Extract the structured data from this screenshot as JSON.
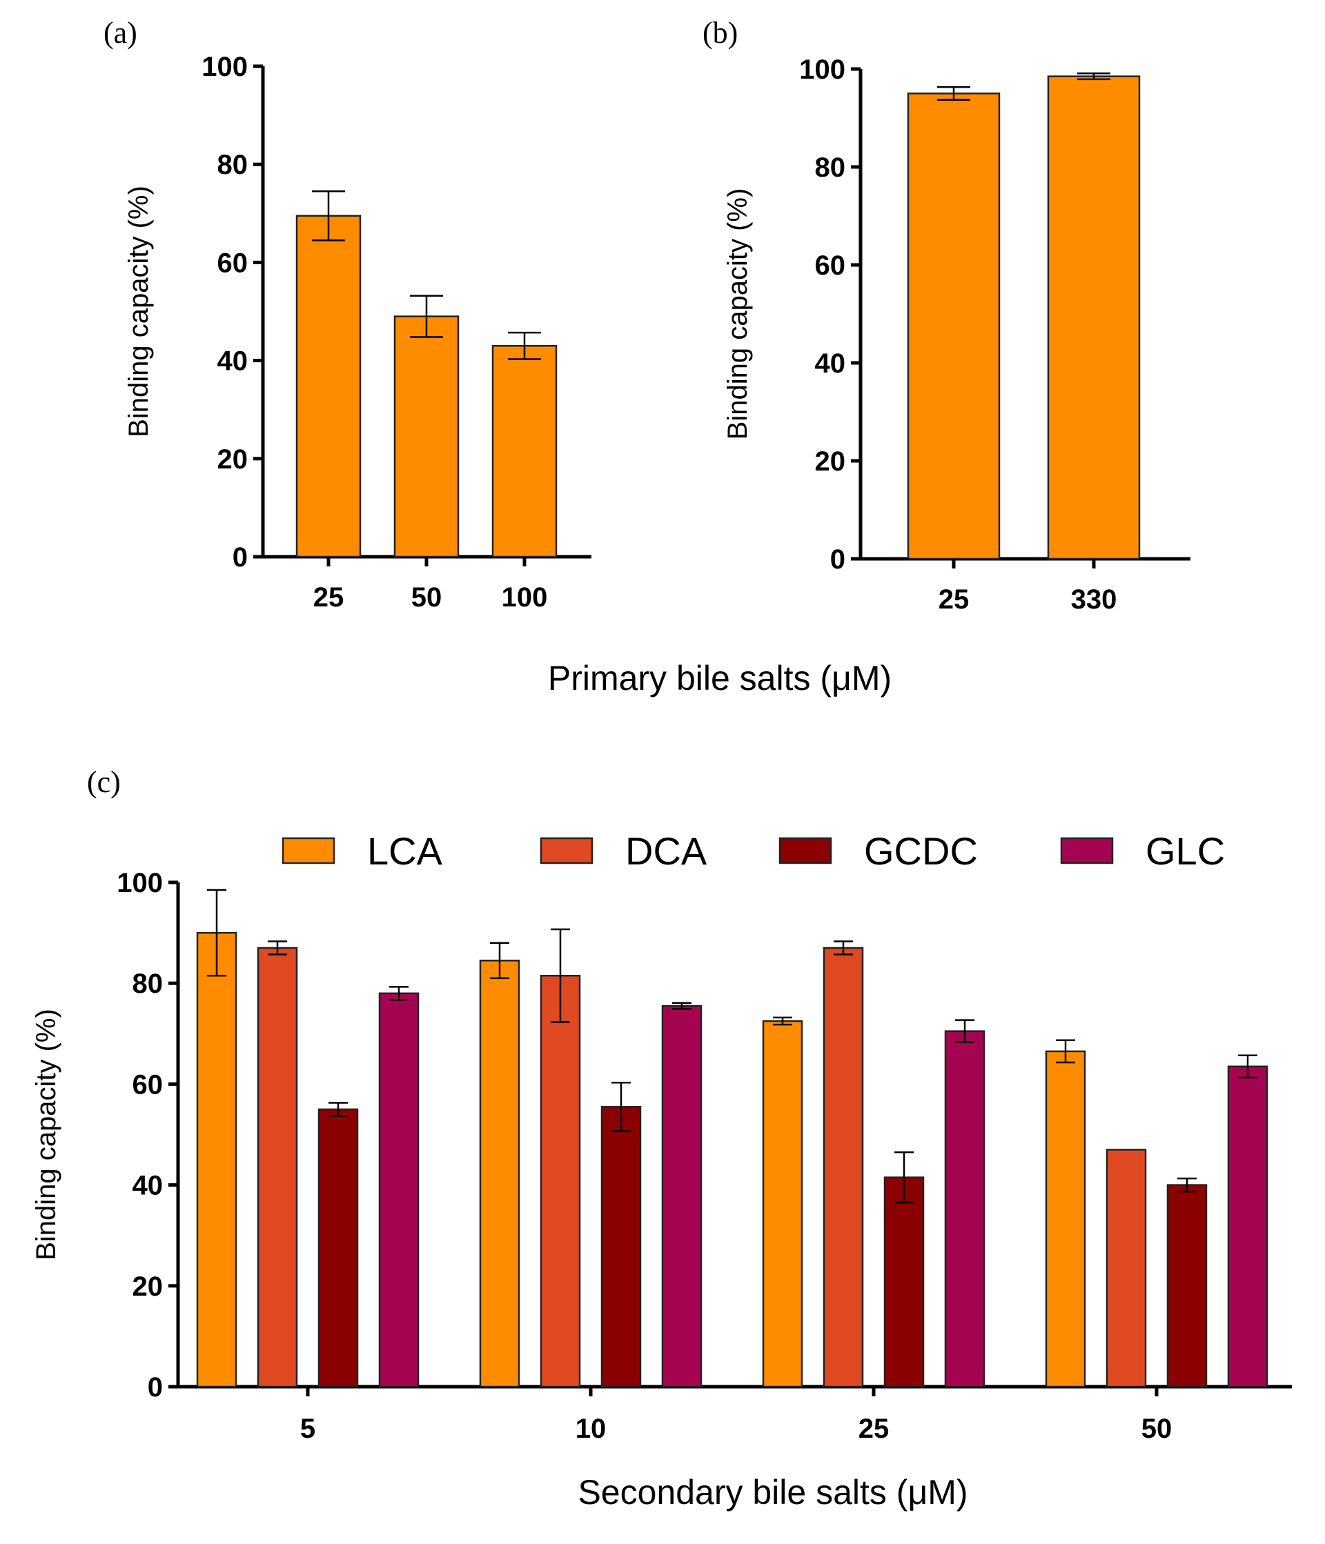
{
  "chart_data": [
    {
      "panel_label": "(a)",
      "type": "bar",
      "categories": [
        "25",
        "50",
        "100"
      ],
      "values": [
        69.5,
        49,
        43
      ],
      "errors": [
        5,
        4.2,
        2.7
      ],
      "xlabel": "",
      "ylabel": "Binding capacity (%)",
      "ylim": [
        0,
        100
      ],
      "yticks": [
        "0",
        "20",
        "40",
        "60",
        "80",
        "100"
      ],
      "color": "#FF8C00"
    },
    {
      "panel_label": "(b)",
      "type": "bar",
      "categories": [
        "25",
        "330"
      ],
      "values": [
        95,
        98.5
      ],
      "errors": [
        1.3,
        0.6
      ],
      "xlabel": "",
      "ylabel": "Binding capacity (%)",
      "ylim": [
        0,
        100
      ],
      "yticks": [
        "0",
        "20",
        "40",
        "60",
        "80",
        "100"
      ],
      "color": "#FF8C00"
    },
    {
      "panel_label": "(c)",
      "type": "bar",
      "categories": [
        "5",
        "10",
        "25",
        "50"
      ],
      "series": [
        {
          "name": "LCA",
          "color": "#FF8C00",
          "values": [
            90,
            84.5,
            72.5,
            66.5
          ],
          "errors": [
            8.5,
            3.5,
            0.7,
            2.2
          ]
        },
        {
          "name": "DCA",
          "color": "#E04A22",
          "values": [
            87,
            81.5,
            87,
            47
          ],
          "errors": [
            1.3,
            9.2,
            1.3,
            0
          ]
        },
        {
          "name": "GCDC",
          "color": "#8B0000",
          "values": [
            55,
            55.5,
            41.5,
            40
          ],
          "errors": [
            1.3,
            4.8,
            5,
            1.3
          ]
        },
        {
          "name": "GLC",
          "color": "#A50550",
          "values": [
            78,
            75.5,
            70.5,
            63.5
          ],
          "errors": [
            1.3,
            0.6,
            2.2,
            2.2
          ]
        }
      ],
      "xlabel": "Secondary bile salts (μM)",
      "ylabel": "Binding capacity (%)",
      "ylim": [
        0,
        100
      ],
      "yticks": [
        "0",
        "20",
        "40",
        "60",
        "80",
        "100"
      ],
      "legend_position": "top"
    }
  ],
  "shared_xlabel_ab": "Primary bile salts (μM)"
}
